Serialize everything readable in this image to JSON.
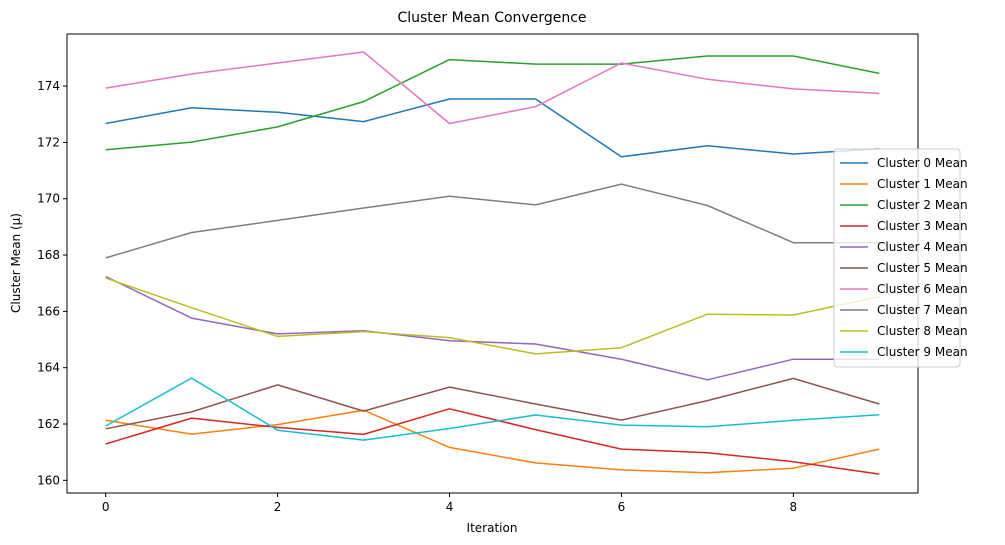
{
  "chart_data": {
    "type": "line",
    "title": "Cluster Mean Convergence",
    "xlabel": "Iteration",
    "ylabel": "Cluster Mean (μ)",
    "xlim": [
      -0.45,
      9.45
    ],
    "ylim": [
      159.55,
      175.85
    ],
    "xticks": [
      0,
      2,
      4,
      6,
      8
    ],
    "yticks": [
      160,
      162,
      164,
      166,
      168,
      170,
      172,
      174
    ],
    "grid": false,
    "legend_position": "center right",
    "x": [
      0,
      1,
      2,
      3,
      4,
      5,
      6,
      7,
      8,
      9
    ],
    "series": [
      {
        "name": "Cluster 0 Mean",
        "color": "#1f77b4",
        "values": [
          172.67,
          173.23,
          173.07,
          172.74,
          173.54,
          173.54,
          171.49,
          171.88,
          171.59,
          171.77
        ]
      },
      {
        "name": "Cluster 1 Mean",
        "color": "#ff7f0e",
        "values": [
          162.13,
          161.64,
          161.98,
          162.49,
          161.17,
          160.62,
          160.37,
          160.27,
          160.43,
          161.11
        ]
      },
      {
        "name": "Cluster 2 Mean",
        "color": "#2ca02c",
        "values": [
          171.74,
          172.01,
          172.55,
          173.45,
          174.94,
          174.78,
          174.78,
          175.07,
          175.07,
          174.45
        ]
      },
      {
        "name": "Cluster 3 Mean",
        "color": "#d62728",
        "values": [
          161.29,
          162.21,
          161.88,
          161.63,
          162.54,
          161.8,
          161.11,
          160.98,
          160.66,
          160.22
        ]
      },
      {
        "name": "Cluster 4 Mean",
        "color": "#9467bd",
        "values": [
          167.24,
          165.76,
          165.2,
          165.31,
          164.96,
          164.84,
          164.3,
          163.57,
          164.3,
          164.3
        ]
      },
      {
        "name": "Cluster 5 Mean",
        "color": "#8c564b",
        "values": [
          161.83,
          162.43,
          163.39,
          162.46,
          163.31,
          162.71,
          162.14,
          162.83,
          163.62,
          162.71
        ]
      },
      {
        "name": "Cluster 6 Mean",
        "color": "#e377c2",
        "values": [
          173.93,
          174.43,
          174.82,
          175.21,
          172.67,
          173.27,
          174.82,
          174.24,
          173.9,
          173.74
        ]
      },
      {
        "name": "Cluster 7 Mean",
        "color": "#7f7f7f",
        "values": [
          167.9,
          168.8,
          169.23,
          169.67,
          170.09,
          169.78,
          170.52,
          169.76,
          168.44,
          168.44
        ]
      },
      {
        "name": "Cluster 8 Mean",
        "color": "#bcbd22",
        "values": [
          167.18,
          166.13,
          165.11,
          165.28,
          165.07,
          164.49,
          164.71,
          165.9,
          165.87,
          166.52
        ]
      },
      {
        "name": "Cluster 9 Mean",
        "color": "#17becf",
        "values": [
          161.93,
          163.63,
          161.78,
          161.43,
          161.84,
          162.32,
          161.96,
          161.9,
          162.13,
          162.33
        ]
      }
    ]
  }
}
